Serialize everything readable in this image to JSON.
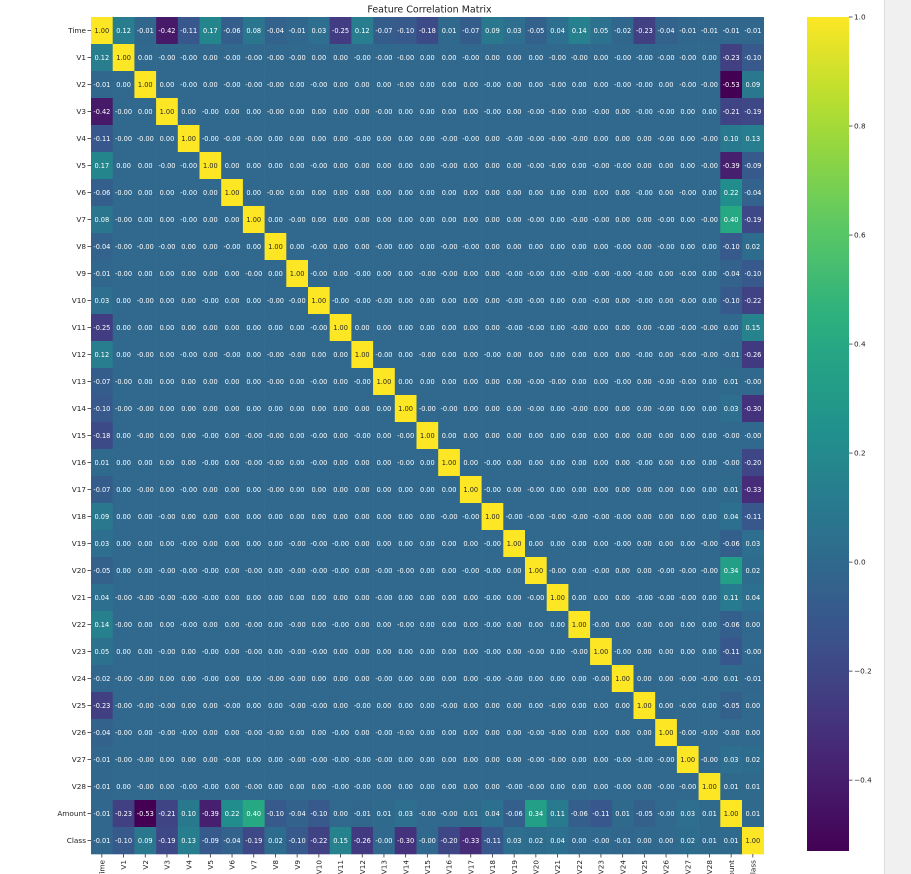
{
  "chart_data": {
    "type": "heatmap",
    "title": "Feature Correlation Matrix",
    "labels": [
      "Time",
      "V1",
      "V2",
      "V3",
      "V4",
      "V5",
      "V6",
      "V7",
      "V8",
      "V9",
      "V10",
      "V11",
      "V12",
      "V13",
      "V14",
      "V15",
      "V16",
      "V17",
      "V18",
      "V19",
      "V20",
      "V21",
      "V22",
      "V23",
      "V24",
      "V25",
      "V26",
      "V27",
      "V28",
      "Amount",
      "Class"
    ],
    "colormap": "viridis",
    "color_range": [
      -0.53,
      1.0
    ],
    "colorbar_ticks": [
      1.0,
      0.8,
      0.6,
      0.4,
      0.2,
      0.0,
      -0.2,
      -0.4
    ],
    "colorbar_tick_labels": [
      "1.0",
      "0.8",
      "0.6",
      "0.4",
      "0.2",
      "0.0",
      "−0.2",
      "−0.4"
    ],
    "annotated": true,
    "matrix": [
      [
        1.0,
        0.12,
        -0.01,
        -0.42,
        -0.11,
        0.17,
        -0.06,
        0.08,
        -0.04,
        -0.01,
        0.03,
        -0.25,
        0.12,
        -0.07,
        -0.1,
        -0.18,
        0.01,
        -0.07,
        0.09,
        0.03,
        -0.05,
        0.04,
        0.14,
        0.05,
        -0.02,
        -0.23,
        -0.04,
        -0.01,
        -0.01,
        -0.01,
        -0.01
      ],
      [
        0.12,
        1.0,
        0.0,
        -0.0,
        -0.0,
        0.0,
        -0.0,
        -0.0,
        -0.0,
        -0.0,
        0.0,
        0.0,
        -0.0,
        -0.0,
        -0.0,
        0.0,
        0.0,
        -0.0,
        0.0,
        0.0,
        0.0,
        -0.0,
        -0.0,
        0.0,
        -0.0,
        -0.0,
        -0.0,
        -0.0,
        0.0,
        -0.23,
        -0.1
      ],
      [
        -0.01,
        0.0,
        1.0,
        0.0,
        -0.0,
        0.0,
        -0.0,
        -0.0,
        -0.0,
        0.0,
        -0.0,
        0.0,
        0.0,
        0.0,
        -0.0,
        0.0,
        0.0,
        0.0,
        -0.0,
        0.0,
        0.0,
        -0.0,
        0.0,
        0.0,
        -0.0,
        -0.0,
        0.0,
        -0.0,
        -0.0,
        -0.53,
        0.09
      ],
      [
        -0.42,
        -0.0,
        0.0,
        1.0,
        0.0,
        -0.0,
        0.0,
        0.0,
        -0.0,
        0.0,
        0.0,
        0.0,
        0.0,
        -0.0,
        0.0,
        0.0,
        0.0,
        0.0,
        -0.0,
        0.0,
        -0.0,
        -0.0,
        0.0,
        -0.0,
        0.0,
        -0.0,
        -0.0,
        0.0,
        0.0,
        -0.21,
        -0.19
      ],
      [
        -0.11,
        -0.0,
        -0.0,
        0.0,
        1.0,
        -0.0,
        -0.0,
        -0.0,
        0.0,
        0.0,
        0.0,
        0.0,
        -0.0,
        0.0,
        0.0,
        0.0,
        -0.0,
        -0.0,
        0.0,
        -0.0,
        -0.0,
        -0.0,
        -0.0,
        0.0,
        0.0,
        0.0,
        -0.0,
        0.0,
        -0.0,
        0.1,
        0.13
      ],
      [
        0.17,
        0.0,
        0.0,
        -0.0,
        -0.0,
        1.0,
        0.0,
        0.0,
        0.0,
        0.0,
        -0.0,
        0.0,
        0.0,
        0.0,
        0.0,
        0.0,
        -0.0,
        0.0,
        0.0,
        0.0,
        -0.0,
        -0.0,
        0.0,
        -0.0,
        -0.0,
        0.0,
        0.0,
        0.0,
        -0.0,
        -0.39,
        -0.09
      ],
      [
        -0.06,
        -0.0,
        0.0,
        0.0,
        -0.0,
        0.0,
        1.0,
        0.0,
        -0.0,
        0.0,
        0.0,
        0.0,
        0.0,
        0.0,
        0.0,
        0.0,
        0.0,
        0.0,
        0.0,
        0.0,
        0.0,
        0.0,
        0.0,
        0.0,
        0.0,
        -0.0,
        0.0,
        -0.0,
        0.0,
        0.22,
        -0.04
      ],
      [
        0.08,
        -0.0,
        0.0,
        0.0,
        -0.0,
        0.0,
        0.0,
        1.0,
        0.0,
        -0.0,
        0.0,
        0.0,
        0.0,
        0.0,
        0.0,
        0.0,
        0.0,
        0.0,
        0.0,
        0.0,
        -0.0,
        0.0,
        -0.0,
        -0.0,
        0.0,
        0.0,
        -0.0,
        0.0,
        -0.0,
        0.4,
        -0.19
      ],
      [
        -0.04,
        -0.0,
        -0.0,
        -0.0,
        0.0,
        0.0,
        -0.0,
        0.0,
        1.0,
        0.0,
        -0.0,
        0.0,
        0.0,
        -0.0,
        0.0,
        0.0,
        -0.0,
        -0.0,
        0.0,
        0.0,
        0.0,
        0.0,
        0.0,
        0.0,
        -0.0,
        0.0,
        -0.0,
        0.0,
        0.0,
        -0.1,
        0.02
      ],
      [
        -0.01,
        -0.0,
        0.0,
        0.0,
        0.0,
        0.0,
        0.0,
        -0.0,
        0.0,
        1.0,
        -0.0,
        0.0,
        -0.0,
        0.0,
        0.0,
        -0.0,
        -0.0,
        0.0,
        0.0,
        -0.0,
        -0.0,
        0.0,
        -0.0,
        -0.0,
        -0.0,
        -0.0,
        0.0,
        -0.0,
        0.0,
        -0.04,
        -0.1
      ],
      [
        0.03,
        0.0,
        -0.0,
        0.0,
        0.0,
        -0.0,
        0.0,
        0.0,
        -0.0,
        -0.0,
        1.0,
        -0.0,
        -0.0,
        -0.0,
        0.0,
        0.0,
        0.0,
        0.0,
        0.0,
        -0.0,
        -0.0,
        0.0,
        0.0,
        -0.0,
        0.0,
        -0.0,
        0.0,
        -0.0,
        0.0,
        -0.1,
        -0.22
      ],
      [
        -0.25,
        0.0,
        0.0,
        0.0,
        0.0,
        0.0,
        0.0,
        0.0,
        0.0,
        0.0,
        -0.0,
        1.0,
        0.0,
        0.0,
        0.0,
        0.0,
        0.0,
        0.0,
        0.0,
        -0.0,
        -0.0,
        0.0,
        -0.0,
        0.0,
        0.0,
        0.0,
        -0.0,
        -0.0,
        -0.0,
        0.0,
        0.15
      ],
      [
        0.12,
        0.0,
        -0.0,
        0.0,
        -0.0,
        0.0,
        -0.0,
        0.0,
        -0.0,
        -0.0,
        0.0,
        0.0,
        1.0,
        -0.0,
        0.0,
        -0.0,
        0.0,
        0.0,
        -0.0,
        0.0,
        0.0,
        0.0,
        0.0,
        0.0,
        0.0,
        -0.0,
        0.0,
        -0.0,
        -0.0,
        -0.01,
        -0.26
      ],
      [
        -0.07,
        -0.0,
        0.0,
        0.0,
        0.0,
        0.0,
        0.0,
        0.0,
        -0.0,
        0.0,
        -0.0,
        0.0,
        -0.0,
        1.0,
        0.0,
        0.0,
        0.0,
        0.0,
        0.0,
        0.0,
        -0.0,
        -0.0,
        0.0,
        0.0,
        -0.0,
        0.0,
        -0.0,
        -0.0,
        0.0,
        0.01,
        -0.0
      ],
      [
        -0.1,
        -0.0,
        -0.0,
        0.0,
        0.0,
        0.0,
        0.0,
        0.0,
        0.0,
        0.0,
        0.0,
        0.0,
        0.0,
        0.0,
        1.0,
        -0.0,
        -0.0,
        0.0,
        0.0,
        0.0,
        -0.0,
        0.0,
        -0.0,
        0.0,
        0.0,
        0.0,
        -0.0,
        0.0,
        0.0,
        0.03,
        -0.3
      ],
      [
        -0.18,
        0.0,
        -0.0,
        0.0,
        0.0,
        -0.0,
        0.0,
        -0.0,
        -0.0,
        0.0,
        -0.0,
        0.0,
        -0.0,
        0.0,
        -0.0,
        1.0,
        0.0,
        0.0,
        0.0,
        0.0,
        0.0,
        0.0,
        0.0,
        0.0,
        0.0,
        0.0,
        0.0,
        0.0,
        0.0,
        -0.0,
        -0.0
      ],
      [
        0.01,
        0.0,
        0.0,
        0.0,
        0.0,
        -0.0,
        0.0,
        -0.0,
        -0.0,
        0.0,
        -0.0,
        0.0,
        0.0,
        0.0,
        -0.0,
        0.0,
        1.0,
        0.0,
        -0.0,
        0.0,
        0.0,
        0.0,
        0.0,
        0.0,
        0.0,
        -0.0,
        0.0,
        0.0,
        0.0,
        -0.0,
        -0.2
      ],
      [
        -0.07,
        0.0,
        -0.0,
        0.0,
        -0.0,
        0.0,
        0.0,
        0.0,
        -0.0,
        0.0,
        0.0,
        0.0,
        0.0,
        0.0,
        0.0,
        0.0,
        0.0,
        1.0,
        -0.0,
        0.0,
        -0.0,
        0.0,
        0.0,
        0.0,
        0.0,
        0.0,
        0.0,
        0.0,
        0.0,
        0.01,
        -0.33
      ],
      [
        0.09,
        0.0,
        0.0,
        -0.0,
        0.0,
        0.0,
        0.0,
        0.0,
        0.0,
        0.0,
        0.0,
        0.0,
        0.0,
        0.0,
        0.0,
        0.0,
        -0.0,
        -0.0,
        1.0,
        -0.0,
        -0.0,
        -0.0,
        -0.0,
        -0.0,
        -0.0,
        0.0,
        0.0,
        0.0,
        0.0,
        0.04,
        -0.11
      ],
      [
        0.03,
        0.0,
        0.0,
        0.0,
        -0.0,
        0.0,
        0.0,
        0.0,
        0.0,
        -0.0,
        -0.0,
        -0.0,
        0.0,
        0.0,
        0.0,
        0.0,
        0.0,
        0.0,
        -0.0,
        1.0,
        0.0,
        0.0,
        0.0,
        0.0,
        -0.0,
        0.0,
        0.0,
        0.0,
        -0.0,
        -0.06,
        0.03
      ],
      [
        -0.05,
        0.0,
        0.0,
        -0.0,
        -0.0,
        -0.0,
        0.0,
        -0.0,
        0.0,
        -0.0,
        -0.0,
        -0.0,
        0.0,
        -0.0,
        -0.0,
        0.0,
        0.0,
        -0.0,
        -0.0,
        0.0,
        1.0,
        -0.0,
        0.0,
        -0.0,
        0.0,
        0.0,
        -0.0,
        -0.0,
        -0.0,
        0.34,
        0.02
      ],
      [
        0.04,
        -0.0,
        -0.0,
        -0.0,
        -0.0,
        -0.0,
        0.0,
        0.0,
        0.0,
        0.0,
        0.0,
        0.0,
        0.0,
        -0.0,
        0.0,
        0.0,
        0.0,
        0.0,
        -0.0,
        0.0,
        -0.0,
        1.0,
        0.0,
        0.0,
        0.0,
        -0.0,
        -0.0,
        -0.0,
        0.0,
        0.11,
        0.04
      ],
      [
        0.14,
        -0.0,
        0.0,
        0.0,
        -0.0,
        0.0,
        0.0,
        -0.0,
        0.0,
        -0.0,
        0.0,
        -0.0,
        0.0,
        0.0,
        -0.0,
        0.0,
        0.0,
        0.0,
        -0.0,
        0.0,
        0.0,
        0.0,
        1.0,
        -0.0,
        0.0,
        0.0,
        0.0,
        0.0,
        0.0,
        -0.06,
        0.0
      ],
      [
        0.05,
        0.0,
        0.0,
        -0.0,
        0.0,
        -0.0,
        0.0,
        -0.0,
        0.0,
        -0.0,
        -0.0,
        0.0,
        0.0,
        0.0,
        0.0,
        0.0,
        0.0,
        0.0,
        -0.0,
        0.0,
        -0.0,
        0.0,
        -0.0,
        1.0,
        -0.0,
        0.0,
        0.0,
        0.0,
        0.0,
        -0.11,
        -0.0
      ],
      [
        -0.02,
        -0.0,
        -0.0,
        0.0,
        0.0,
        -0.0,
        0.0,
        0.0,
        -0.0,
        -0.0,
        0.0,
        0.0,
        0.0,
        -0.0,
        0.0,
        0.0,
        0.0,
        0.0,
        -0.0,
        -0.0,
        0.0,
        0.0,
        0.0,
        -0.0,
        1.0,
        0.0,
        0.0,
        -0.0,
        -0.0,
        0.01,
        -0.01
      ],
      [
        -0.23,
        -0.0,
        -0.0,
        -0.0,
        0.0,
        0.0,
        -0.0,
        0.0,
        0.0,
        -0.0,
        -0.0,
        0.0,
        -0.0,
        0.0,
        0.0,
        0.0,
        -0.0,
        0.0,
        0.0,
        0.0,
        0.0,
        -0.0,
        0.0,
        0.0,
        0.0,
        1.0,
        0.0,
        -0.0,
        0.0,
        -0.05,
        0.0
      ],
      [
        -0.04,
        -0.0,
        0.0,
        -0.0,
        -0.0,
        0.0,
        0.0,
        -0.0,
        -0.0,
        0.0,
        0.0,
        -0.0,
        0.0,
        -0.0,
        -0.0,
        0.0,
        0.0,
        0.0,
        0.0,
        0.0,
        -0.0,
        -0.0,
        0.0,
        0.0,
        0.0,
        0.0,
        1.0,
        -0.0,
        -0.0,
        -0.0,
        0.0
      ],
      [
        -0.01,
        -0.0,
        -0.0,
        0.0,
        0.0,
        0.0,
        -0.0,
        0.0,
        0.0,
        -0.0,
        -0.0,
        -0.0,
        -0.0,
        -0.0,
        0.0,
        0.0,
        0.0,
        0.0,
        0.0,
        0.0,
        -0.0,
        -0.0,
        0.0,
        0.0,
        -0.0,
        -0.0,
        -0.0,
        1.0,
        -0.0,
        0.03,
        0.02
      ],
      [
        -0.01,
        0.0,
        -0.0,
        0.0,
        -0.0,
        -0.0,
        0.0,
        -0.0,
        0.0,
        0.0,
        0.0,
        -0.0,
        -0.0,
        0.0,
        0.0,
        0.0,
        0.0,
        0.0,
        0.0,
        -0.0,
        -0.0,
        0.0,
        0.0,
        0.0,
        -0.0,
        0.0,
        -0.0,
        -0.0,
        1.0,
        0.01,
        0.01
      ],
      [
        -0.01,
        -0.23,
        -0.53,
        -0.21,
        0.1,
        -0.39,
        0.22,
        0.4,
        -0.1,
        -0.04,
        -0.1,
        0.0,
        -0.01,
        0.01,
        0.03,
        -0.0,
        -0.0,
        0.01,
        0.04,
        -0.06,
        0.34,
        0.11,
        -0.06,
        -0.11,
        0.01,
        -0.05,
        -0.0,
        0.03,
        0.01,
        1.0,
        0.01
      ],
      [
        -0.01,
        -0.1,
        0.09,
        -0.19,
        0.13,
        -0.09,
        -0.04,
        -0.19,
        0.02,
        -0.1,
        -0.22,
        0.15,
        -0.26,
        -0.0,
        -0.3,
        -0.0,
        -0.2,
        -0.33,
        -0.11,
        0.03,
        0.02,
        0.04,
        0.0,
        -0.0,
        -0.01,
        0.0,
        0.0,
        0.02,
        0.01,
        0.01,
        1.0
      ]
    ]
  }
}
